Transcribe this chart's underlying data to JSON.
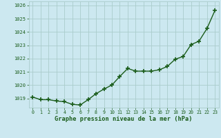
{
  "x": [
    0,
    1,
    2,
    3,
    4,
    5,
    6,
    7,
    8,
    9,
    10,
    11,
    12,
    13,
    14,
    15,
    16,
    17,
    18,
    19,
    20,
    21,
    22,
    23
  ],
  "y": [
    1019.1,
    1018.9,
    1018.9,
    1018.8,
    1018.75,
    1018.55,
    1018.5,
    1018.9,
    1019.35,
    1019.7,
    1020.0,
    1020.65,
    1021.25,
    1021.05,
    1021.05,
    1021.05,
    1021.15,
    1021.4,
    1021.95,
    1022.15,
    1023.05,
    1023.3,
    1024.25,
    1025.6
  ],
  "ylim": [
    1018.3,
    1026.3
  ],
  "yticks": [
    1019,
    1020,
    1021,
    1022,
    1023,
    1024,
    1025,
    1026
  ],
  "xticks": [
    0,
    1,
    2,
    3,
    4,
    5,
    6,
    7,
    8,
    9,
    10,
    11,
    12,
    13,
    14,
    15,
    16,
    17,
    18,
    19,
    20,
    21,
    22,
    23
  ],
  "line_color": "#1a5c1a",
  "marker_color": "#1a5c1a",
  "bg_color": "#cce8f0",
  "grid_color": "#aacccc",
  "xlabel": "Graphe pression niveau de la mer (hPa)",
  "xlabel_color": "#1a5c1a",
  "tick_color": "#1a5c1a",
  "marker": "+",
  "marker_size": 4,
  "line_width": 1.0
}
